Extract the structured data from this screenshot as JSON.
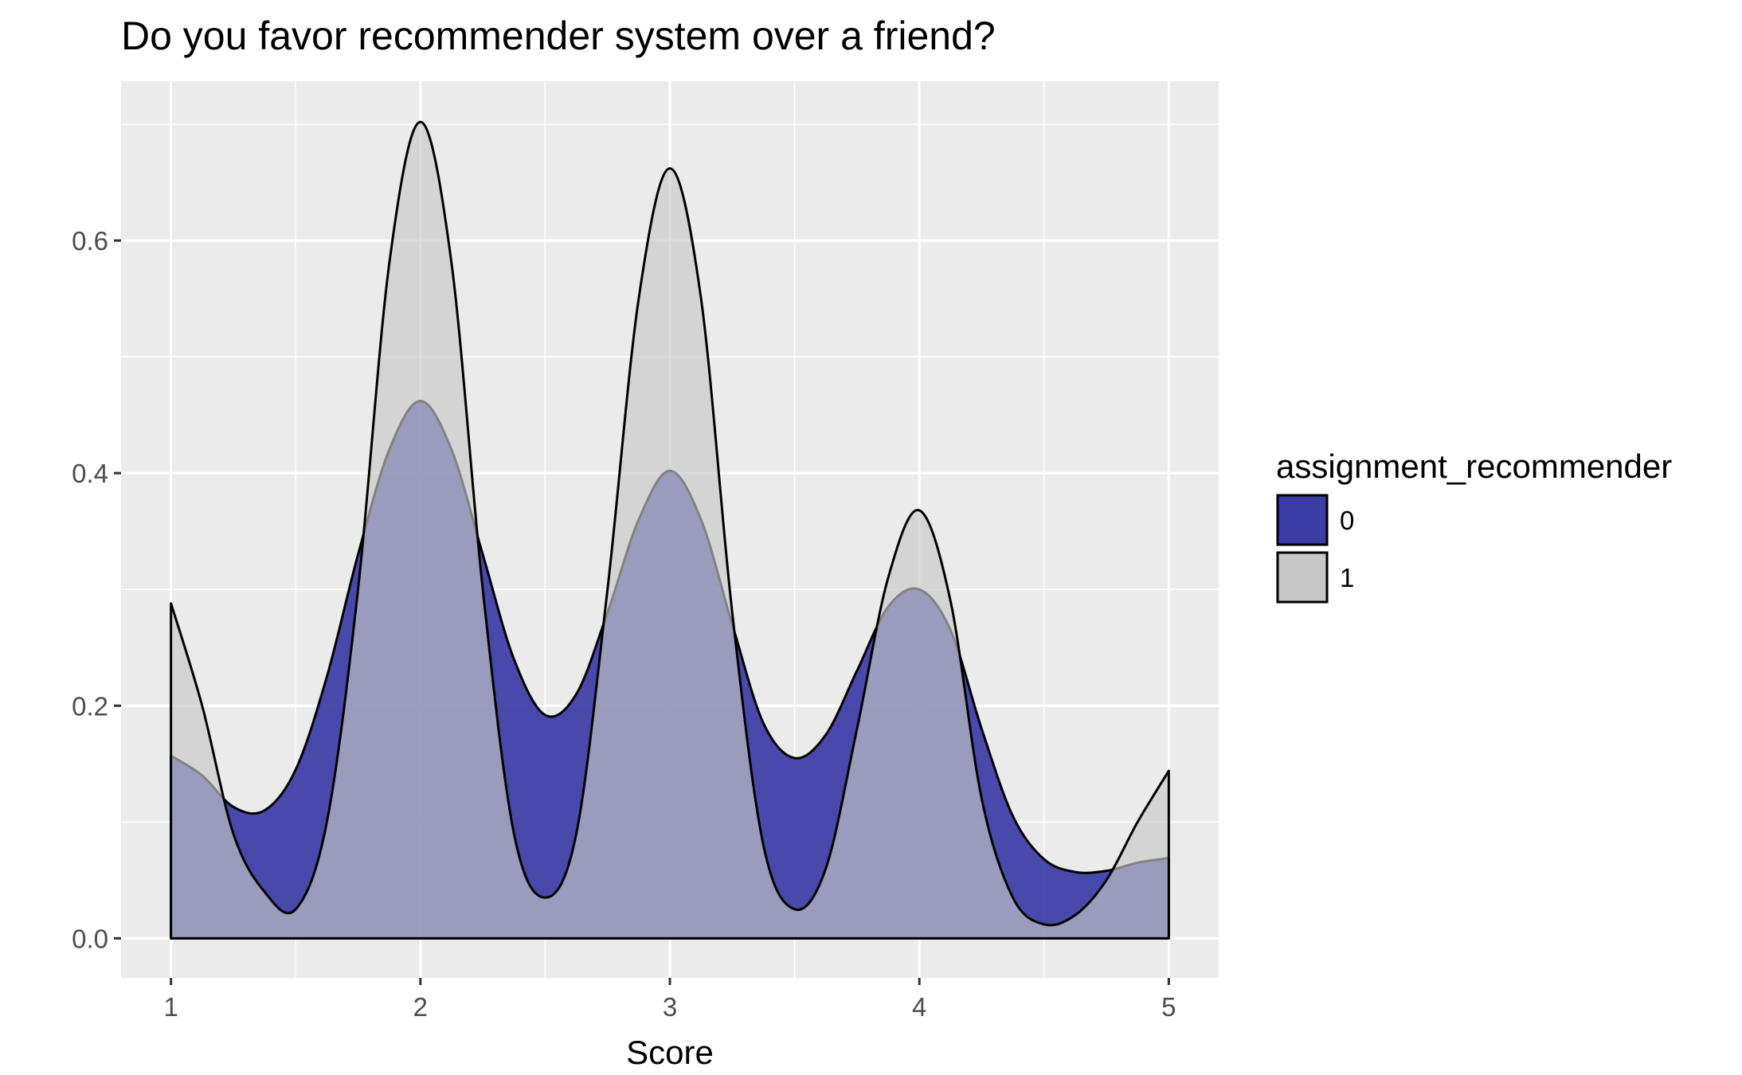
{
  "chart_data": {
    "type": "area",
    "subtype": "density",
    "title": "Do you favor recommender system over a friend?",
    "xlabel": "Score",
    "ylabel": "",
    "xlim": [
      0.8,
      5.2
    ],
    "ylim": [
      -0.034,
      0.737
    ],
    "x_ticks": [
      1,
      2,
      3,
      4,
      5
    ],
    "x_tick_labels": [
      "1",
      "2",
      "3",
      "4",
      "5"
    ],
    "y_ticks": [
      0.0,
      0.2,
      0.4,
      0.6
    ],
    "y_tick_labels": [
      "0.0",
      "0.2",
      "0.4",
      "0.6"
    ],
    "grid": true,
    "legend": {
      "title": "assignment_recommender",
      "position": "right",
      "entries": [
        {
          "label": "0",
          "color": "#3c3ca6"
        },
        {
          "label": "1",
          "color": "#c8c8c8"
        }
      ]
    },
    "series": [
      {
        "name": "0",
        "color": "#3c3ca6",
        "opacity": 0.93,
        "x": [
          1.0,
          1.125,
          1.25,
          1.375,
          1.5,
          1.625,
          1.75,
          1.875,
          2.0,
          2.125,
          2.25,
          2.375,
          2.5,
          2.625,
          2.75,
          2.875,
          3.0,
          3.125,
          3.25,
          3.375,
          3.5,
          3.625,
          3.75,
          3.875,
          4.0,
          4.125,
          4.25,
          4.375,
          4.5,
          4.625,
          4.75,
          4.875,
          5.0
        ],
        "y": [
          0.157,
          0.14,
          0.113,
          0.11,
          0.145,
          0.225,
          0.33,
          0.42,
          0.462,
          0.42,
          0.33,
          0.24,
          0.192,
          0.21,
          0.28,
          0.36,
          0.402,
          0.36,
          0.27,
          0.185,
          0.155,
          0.175,
          0.23,
          0.285,
          0.3,
          0.265,
          0.18,
          0.105,
          0.068,
          0.057,
          0.058,
          0.065,
          0.069
        ]
      },
      {
        "name": "1",
        "color": "#c8c8c8",
        "opacity": 0.65,
        "x": [
          1.0,
          1.125,
          1.25,
          1.375,
          1.5,
          1.625,
          1.75,
          1.875,
          2.0,
          2.125,
          2.25,
          2.375,
          2.5,
          2.625,
          2.75,
          2.875,
          3.0,
          3.125,
          3.25,
          3.375,
          3.5,
          3.625,
          3.75,
          3.875,
          4.0,
          4.125,
          4.25,
          4.375,
          4.5,
          4.625,
          4.75,
          4.875,
          5.0
        ],
        "y": [
          0.288,
          0.2,
          0.09,
          0.04,
          0.025,
          0.1,
          0.3,
          0.58,
          0.702,
          0.58,
          0.3,
          0.09,
          0.035,
          0.09,
          0.3,
          0.55,
          0.662,
          0.55,
          0.28,
          0.08,
          0.025,
          0.06,
          0.18,
          0.31,
          0.368,
          0.29,
          0.12,
          0.035,
          0.012,
          0.02,
          0.05,
          0.1,
          0.144
        ]
      }
    ]
  }
}
